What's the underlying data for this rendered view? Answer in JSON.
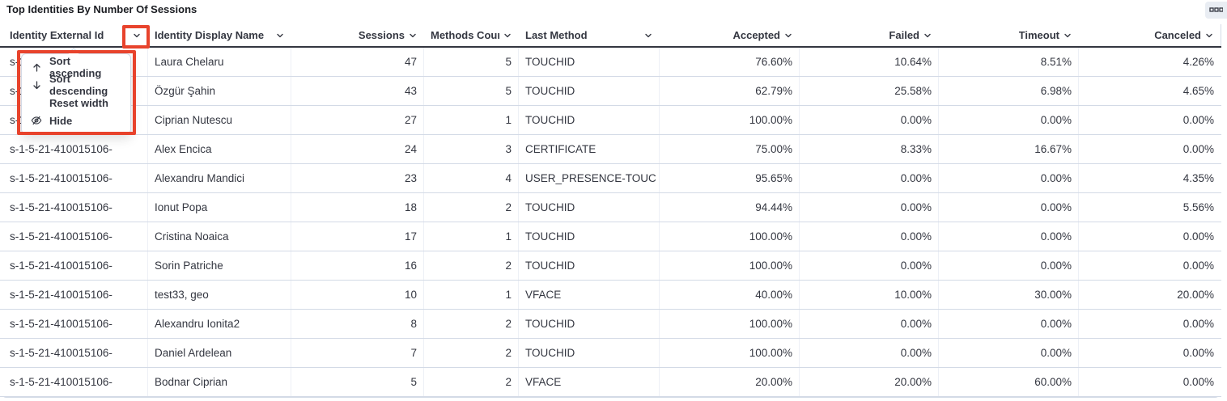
{
  "title": "Top Identities By Number Of Sessions",
  "accent_colors": {
    "annotation_red": "#e8432c",
    "header_border": "#343741",
    "row_divider": "#d3dae6"
  },
  "panel": {
    "options_icon": "boxes-horizontal-icon"
  },
  "column_menu": {
    "items": [
      {
        "icon": "sort-ascending-icon",
        "label": "Sort ascending"
      },
      {
        "icon": "sort-descending-icon",
        "label": "Sort descending"
      },
      {
        "icon": "",
        "label": "Reset width"
      },
      {
        "icon": "eye-closed-icon",
        "label": "Hide"
      }
    ]
  },
  "table": {
    "columns": [
      {
        "key": "identity-external-id",
        "label": "Identity External Id",
        "align": "left"
      },
      {
        "key": "identity-display-name",
        "label": "Identity Display Name",
        "align": "left"
      },
      {
        "key": "sessions",
        "label": "Sessions",
        "align": "right"
      },
      {
        "key": "methods-count",
        "label": "Methods Count",
        "align": "right"
      },
      {
        "key": "last-method",
        "label": "Last Method",
        "align": "left"
      },
      {
        "key": "accepted",
        "label": "Accepted",
        "align": "right"
      },
      {
        "key": "failed",
        "label": "Failed",
        "align": "right"
      },
      {
        "key": "timeout",
        "label": "Timeout",
        "align": "right"
      },
      {
        "key": "canceled",
        "label": "Canceled",
        "align": "right"
      }
    ],
    "rows": [
      [
        "s-1-5-21-410015106-",
        "Laura Chelaru",
        "47",
        "5",
        "TOUCHID",
        "76.60%",
        "10.64%",
        "8.51%",
        "4.26%"
      ],
      [
        "s-1-5-21-410015106-",
        "Özgür Şahin",
        "43",
        "5",
        "TOUCHID",
        "62.79%",
        "25.58%",
        "6.98%",
        "4.65%"
      ],
      [
        "s-1-5-21-410015106-",
        "Ciprian Nutescu",
        "27",
        "1",
        "TOUCHID",
        "100.00%",
        "0.00%",
        "0.00%",
        "0.00%"
      ],
      [
        "s-1-5-21-410015106-",
        "Alex Encica",
        "24",
        "3",
        "CERTIFICATE",
        "75.00%",
        "8.33%",
        "16.67%",
        "0.00%"
      ],
      [
        "s-1-5-21-410015106-",
        "Alexandru Mandici",
        "23",
        "4",
        "USER_PRESENCE-TOUC",
        "95.65%",
        "0.00%",
        "0.00%",
        "4.35%"
      ],
      [
        "s-1-5-21-410015106-",
        "Ionut Popa",
        "18",
        "2",
        "TOUCHID",
        "94.44%",
        "0.00%",
        "0.00%",
        "5.56%"
      ],
      [
        "s-1-5-21-410015106-",
        "Cristina Noaica",
        "17",
        "1",
        "TOUCHID",
        "100.00%",
        "0.00%",
        "0.00%",
        "0.00%"
      ],
      [
        "s-1-5-21-410015106-",
        "Sorin Patriche",
        "16",
        "2",
        "TOUCHID",
        "100.00%",
        "0.00%",
        "0.00%",
        "0.00%"
      ],
      [
        "s-1-5-21-410015106-",
        "test33, geo",
        "10",
        "1",
        "VFACE",
        "40.00%",
        "10.00%",
        "30.00%",
        "20.00%"
      ],
      [
        "s-1-5-21-410015106-",
        "Alexandru Ionita2",
        "8",
        "2",
        "TOUCHID",
        "100.00%",
        "0.00%",
        "0.00%",
        "0.00%"
      ],
      [
        "s-1-5-21-410015106-",
        "Daniel Ardelean",
        "7",
        "2",
        "TOUCHID",
        "100.00%",
        "0.00%",
        "0.00%",
        "0.00%"
      ],
      [
        "s-1-5-21-410015106-",
        "Bodnar Ciprian",
        "5",
        "2",
        "VFACE",
        "20.00%",
        "20.00%",
        "60.00%",
        "0.00%"
      ]
    ]
  }
}
